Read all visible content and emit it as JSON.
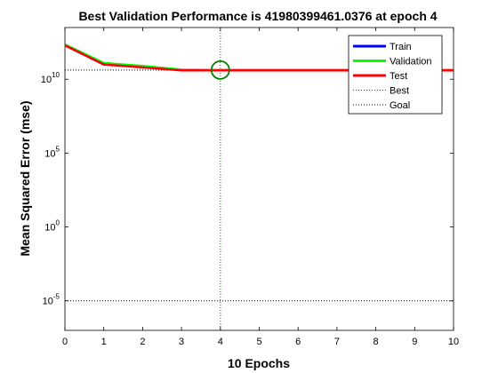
{
  "chart_data": {
    "type": "line",
    "title": "Best Validation Performance is 41980399461.0376 at epoch 4",
    "xlabel": "10 Epochs",
    "ylabel": "Mean Squared Error  (mse)",
    "xlim": [
      0,
      10
    ],
    "ylim_log10": [
      -7,
      13.5
    ],
    "yscale": "log",
    "grid": false,
    "legend_position": "top-right",
    "x_ticks": [
      "0",
      "1",
      "2",
      "3",
      "4",
      "5",
      "6",
      "7",
      "8",
      "9",
      "10"
    ],
    "y_ticks": [
      {
        "base": "10",
        "exp": "-5",
        "log10": -5
      },
      {
        "base": "10",
        "exp": "0",
        "log10": 0
      },
      {
        "base": "10",
        "exp": "5",
        "log10": 5
      },
      {
        "base": "10",
        "exp": "10",
        "log10": 10
      }
    ],
    "x": [
      0,
      1,
      2,
      3,
      4,
      5,
      6,
      7,
      8,
      9,
      10
    ],
    "series": [
      {
        "name": "Train",
        "color": "#0000ff",
        "log10_values": [
          12.3,
          11.0,
          10.85,
          10.63,
          10.62,
          10.62,
          10.62,
          10.62,
          10.62,
          10.62,
          10.62
        ]
      },
      {
        "name": "Validation",
        "color": "#00ff00",
        "log10_values": [
          12.35,
          11.1,
          10.9,
          10.65,
          10.623,
          10.623,
          10.623,
          10.623,
          10.623,
          10.623,
          10.623
        ]
      },
      {
        "name": "Test",
        "color": "#ff0000",
        "log10_values": [
          12.3,
          11.0,
          10.8,
          10.6,
          10.6,
          10.6,
          10.6,
          10.6,
          10.6,
          10.6,
          10.6
        ]
      }
    ],
    "best": {
      "name": "Best",
      "epoch": 4,
      "log10_value": 10.623,
      "color": "#008000"
    },
    "goal": {
      "name": "Goal",
      "log10_value": -5,
      "color": "#000000"
    }
  }
}
